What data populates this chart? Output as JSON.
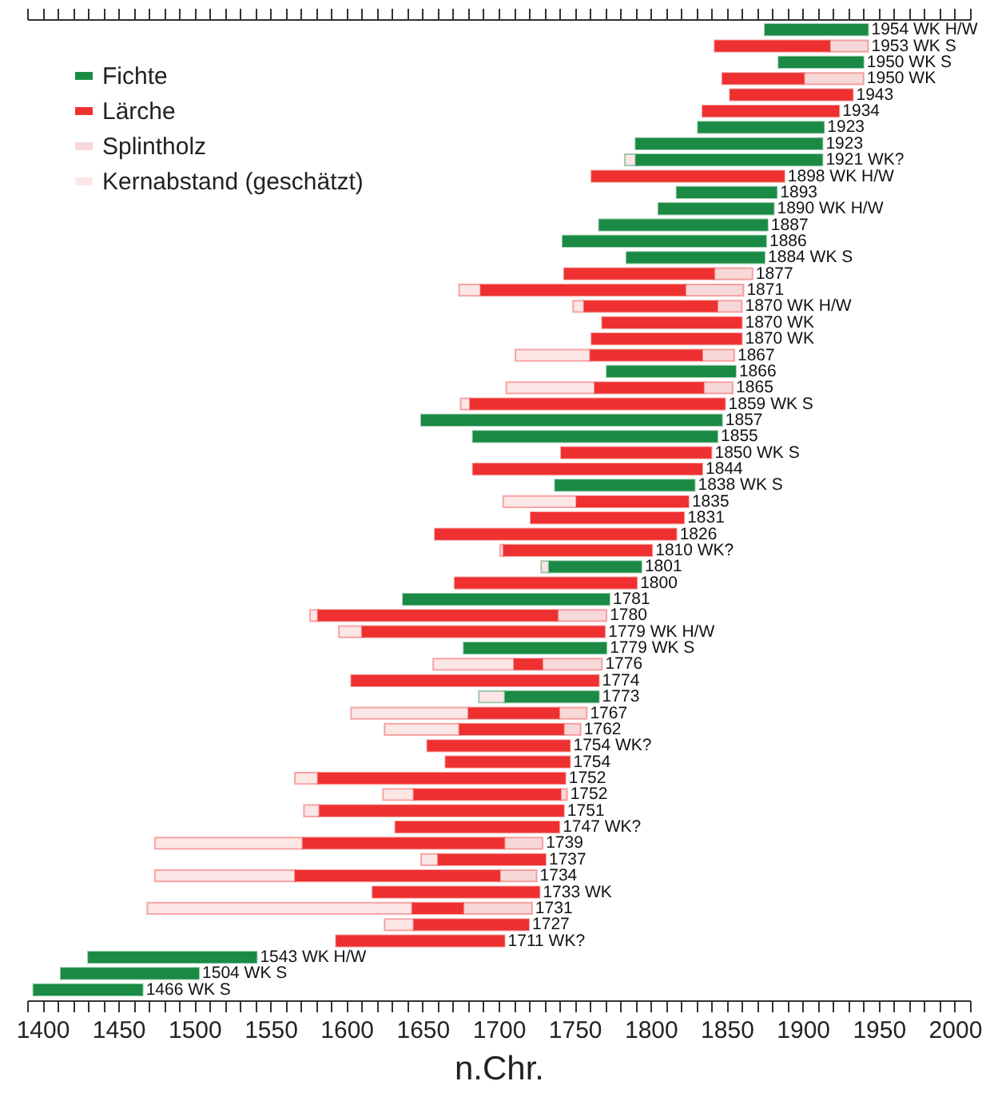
{
  "chart_data": {
    "type": "bar",
    "orientation": "horizontal",
    "xlabel": "n.Chr.",
    "legend": "top left",
    "grid": false,
    "categories": [
      "1954 WK H/W",
      "1953 WK S",
      "1950 WK S",
      "1950 WK",
      "1943",
      "1934",
      "1923",
      "1923",
      "1921 WK?",
      "1898 WK H/W",
      "1893",
      "1890 WK H/W",
      "1887",
      "1886",
      "1884 WK S",
      "1877",
      "1871",
      "1870 WK H/W",
      "1870 WK",
      "1870 WK",
      "1867",
      "1866",
      "1865",
      "1859 WK S",
      "1857",
      "1855",
      "1850 WK S",
      "1844",
      "1838 WK S",
      "1835",
      "1831",
      "1826",
      "1810 WK?",
      "1801",
      "1800",
      "1781",
      "1780",
      "1779 WK H/W",
      "1779 WK S",
      "1776",
      "1774",
      "1773",
      "1767",
      "1762",
      "1754 WK?",
      "1754",
      "1752",
      "1752",
      "1751",
      "1747 WK?",
      "1739",
      "1737",
      "1734",
      "1733 WK",
      "1731",
      "1727",
      "1711 WK?",
      "1543 WK H/W",
      "1504 WK S",
      "1466 WK S"
    ],
    "series": [
      {
        "name": "Fichte",
        "color": "#1a8a44",
        "base": [
          1875,
          null,
          1884,
          null,
          null,
          null,
          1831,
          1790,
          1790,
          null,
          1817,
          1805,
          1766,
          1742,
          1784,
          null,
          null,
          null,
          null,
          null,
          null,
          1771,
          null,
          null,
          1649,
          1683,
          null,
          null,
          1737,
          null,
          null,
          null,
          null,
          1733,
          null,
          1637,
          null,
          null,
          1677,
          null,
          null,
          1704,
          null,
          null,
          null,
          null,
          null,
          null,
          null,
          null,
          null,
          null,
          null,
          null,
          null,
          null,
          null,
          1430,
          1412,
          1394
        ],
        "values": [
          68,
          null,
          56,
          null,
          null,
          null,
          83,
          123,
          123,
          null,
          66,
          76,
          111,
          134,
          91,
          null,
          null,
          null,
          null,
          null,
          null,
          85,
          null,
          null,
          198,
          161,
          null,
          null,
          92,
          null,
          null,
          null,
          null,
          61,
          null,
          136,
          null,
          null,
          94,
          null,
          null,
          62,
          null,
          null,
          null,
          null,
          null,
          null,
          null,
          null,
          null,
          null,
          null,
          null,
          null,
          null,
          null,
          111,
          91,
          72
        ]
      },
      {
        "name": "Lärche",
        "color": "#ee3030",
        "base": [
          null,
          1842,
          null,
          1847,
          1852,
          1834,
          null,
          null,
          null,
          1761,
          null,
          null,
          null,
          null,
          null,
          1743,
          1688,
          1756,
          1768,
          1761,
          1760,
          null,
          1763,
          1681,
          null,
          null,
          1741,
          1683,
          null,
          1751,
          1721,
          1658,
          1703,
          null,
          1671,
          null,
          1581,
          1610,
          null,
          1710,
          1603,
          null,
          1680,
          1674,
          1653,
          1665,
          1581,
          1644,
          1582,
          1632,
          1571,
          1660,
          1566,
          1617,
          1643,
          1644,
          1593,
          null,
          null,
          null
        ],
        "values": [
          null,
          76,
          null,
          54,
          81,
          90,
          null,
          null,
          null,
          127,
          null,
          null,
          null,
          null,
          null,
          99,
          135,
          88,
          92,
          99,
          74,
          null,
          72,
          168,
          null,
          null,
          99,
          151,
          null,
          74,
          101,
          159,
          98,
          null,
          120,
          null,
          158,
          160,
          null,
          19,
          163,
          null,
          60,
          69,
          94,
          82,
          163,
          97,
          161,
          108,
          133,
          71,
          135,
          110,
          34,
          76,
          111,
          null,
          null,
          null
        ]
      },
      {
        "name": "Splintholz",
        "color": "#f7d8d8",
        "base": [
          null,
          1918,
          null,
          1901,
          null,
          null,
          null,
          null,
          null,
          null,
          null,
          null,
          null,
          null,
          null,
          1842,
          1823,
          1844,
          null,
          null,
          1834,
          null,
          1835,
          null,
          null,
          null,
          null,
          null,
          null,
          null,
          null,
          null,
          null,
          null,
          null,
          null,
          1739,
          null,
          null,
          1729,
          null,
          null,
          1740,
          1743,
          null,
          null,
          null,
          1741,
          null,
          null,
          1704,
          null,
          1701,
          null,
          1677,
          null,
          null,
          null,
          null,
          null
        ],
        "values": [
          null,
          25,
          null,
          39,
          null,
          null,
          null,
          null,
          null,
          null,
          null,
          null,
          null,
          null,
          null,
          25,
          38,
          16,
          null,
          null,
          21,
          null,
          19,
          null,
          null,
          null,
          null,
          null,
          null,
          null,
          null,
          null,
          null,
          null,
          null,
          null,
          32,
          null,
          null,
          39,
          null,
          null,
          18,
          11,
          null,
          null,
          null,
          4,
          null,
          null,
          25,
          null,
          24,
          null,
          45,
          null,
          null,
          null,
          null,
          null
        ]
      },
      {
        "name": "Kernabstand (geschätzt)",
        "color": "#fce6e6",
        "base": [
          null,
          null,
          null,
          null,
          null,
          null,
          null,
          null,
          1783,
          null,
          null,
          null,
          null,
          null,
          null,
          null,
          1674,
          1749,
          null,
          null,
          1711,
          null,
          1705,
          1675,
          null,
          null,
          null,
          null,
          null,
          1703,
          null,
          null,
          1701,
          1728,
          null,
          null,
          1576,
          1595,
          null,
          1657,
          null,
          1687,
          1603,
          1625,
          null,
          null,
          1566,
          1624,
          1572,
          null,
          1474,
          1649,
          1474,
          null,
          1469,
          1625,
          null,
          null,
          null,
          null
        ],
        "values": [
          null,
          null,
          null,
          null,
          null,
          null,
          null,
          null,
          7,
          null,
          null,
          null,
          null,
          null,
          null,
          null,
          14,
          7,
          null,
          null,
          49,
          null,
          58,
          6,
          null,
          null,
          null,
          null,
          null,
          48,
          null,
          null,
          2,
          5,
          null,
          null,
          5,
          15,
          null,
          53,
          null,
          17,
          77,
          49,
          null,
          null,
          15,
          20,
          10,
          null,
          97,
          11,
          92,
          null,
          174,
          19,
          null,
          null,
          null,
          null
        ]
      }
    ],
    "xlim": [
      1390,
      2010
    ],
    "xticks": [
      {
        "value": 1390,
        "label": null
      },
      1400,
      {
        "value": 1410,
        "label": null
      },
      {
        "value": 1420,
        "label": null
      },
      {
        "value": 1430,
        "label": null
      },
      {
        "value": 1440,
        "label": null
      },
      1450,
      {
        "value": 1460,
        "label": null
      },
      {
        "value": 1470,
        "label": null
      },
      {
        "value": 1480,
        "label": null
      },
      {
        "value": 1490,
        "label": null
      },
      1500,
      {
        "value": 1510,
        "label": null
      },
      {
        "value": 1520,
        "label": null
      },
      {
        "value": 1530,
        "label": null
      },
      {
        "value": 1540,
        "label": null
      },
      1550,
      {
        "value": 1560,
        "label": null
      },
      {
        "value": 1570,
        "label": null
      },
      {
        "value": 1580,
        "label": null
      },
      {
        "value": 1590,
        "label": null
      },
      1600,
      {
        "value": 1610,
        "label": null
      },
      {
        "value": 1620,
        "label": null
      },
      {
        "value": 1630,
        "label": null
      },
      {
        "value": 1640,
        "label": null
      },
      1650,
      {
        "value": 1660,
        "label": null
      },
      {
        "value": 1670,
        "label": null
      },
      {
        "value": 1680,
        "label": null
      },
      {
        "value": 1690,
        "label": null
      },
      1700,
      {
        "value": 1710,
        "label": null
      },
      {
        "value": 1720,
        "label": null
      },
      {
        "value": 1730,
        "label": null
      },
      {
        "value": 1740,
        "label": null
      },
      1750,
      {
        "value": 1760,
        "label": null
      },
      {
        "value": 1770,
        "label": null
      },
      {
        "value": 1780,
        "label": null
      },
      {
        "value": 1790,
        "label": null
      },
      1800,
      {
        "value": 1810,
        "label": null
      },
      {
        "value": 1820,
        "label": null
      },
      {
        "value": 1830,
        "label": null
      },
      {
        "value": 1840,
        "label": null
      },
      1850,
      {
        "value": 1860,
        "label": null
      },
      {
        "value": 1870,
        "label": null
      },
      {
        "value": 1880,
        "label": null
      },
      {
        "value": 1890,
        "label": null
      },
      1900,
      {
        "value": 1910,
        "label": null
      },
      {
        "value": 1920,
        "label": null
      },
      {
        "value": 1930,
        "label": null
      },
      {
        "value": 1940,
        "label": null
      },
      1950,
      {
        "value": 1960,
        "label": null
      },
      {
        "value": 1970,
        "label": null
      },
      {
        "value": 1980,
        "label": null
      },
      {
        "value": 1990,
        "label": null
      },
      2000,
      {
        "value": 2010,
        "label": null
      }
    ]
  }
}
